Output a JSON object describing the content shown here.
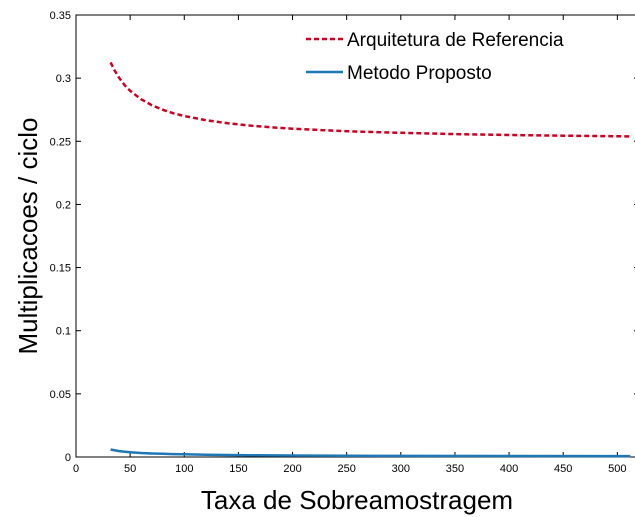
{
  "chart_data": {
    "type": "line",
    "xlabel": "Taxa de Sobreamostragem",
    "ylabel": "Multiplicacoes / ciclo",
    "xlim": [
      0,
      520
    ],
    "ylim": [
      0,
      0.35
    ],
    "xticks": [
      0,
      50,
      100,
      150,
      200,
      250,
      300,
      350,
      400,
      450,
      500
    ],
    "yticks": [
      0,
      0.05,
      0.1,
      0.15,
      0.2,
      0.25,
      0.3,
      0.35
    ],
    "ytick_labels": [
      "0",
      "0.05",
      "0.1",
      "0.15",
      "0.2",
      "0.25",
      "0.3",
      "0.35"
    ],
    "grid": false,
    "legend_position": "top-right",
    "series": [
      {
        "name": "Arquitetura de Referencia",
        "color": "#cc0022",
        "style": "dashed",
        "x": [
          32,
          36,
          40,
          45,
          50,
          60,
          70,
          80,
          90,
          100,
          120,
          140,
          160,
          180,
          200,
          230,
          260,
          300,
          350,
          400,
          450,
          512
        ],
        "y": [
          0.3125,
          0.3056,
          0.3,
          0.2944,
          0.29,
          0.2833,
          0.2786,
          0.275,
          0.2722,
          0.27,
          0.2667,
          0.2643,
          0.2625,
          0.2611,
          0.26,
          0.2587,
          0.2577,
          0.2567,
          0.2557,
          0.255,
          0.2544,
          0.2539
        ]
      },
      {
        "name": "Metodo Proposto",
        "color": "#1f77b4",
        "style": "solid",
        "x": [
          32,
          36,
          40,
          45,
          50,
          60,
          70,
          80,
          90,
          100,
          120,
          140,
          160,
          200,
          250,
          300,
          400,
          512
        ],
        "y": [
          0.0059,
          0.0052,
          0.0047,
          0.0042,
          0.0038,
          0.0032,
          0.0028,
          0.0025,
          0.0023,
          0.0021,
          0.0018,
          0.0016,
          0.0014,
          0.0012,
          0.001,
          0.0009,
          0.0008,
          0.0007
        ]
      }
    ]
  }
}
